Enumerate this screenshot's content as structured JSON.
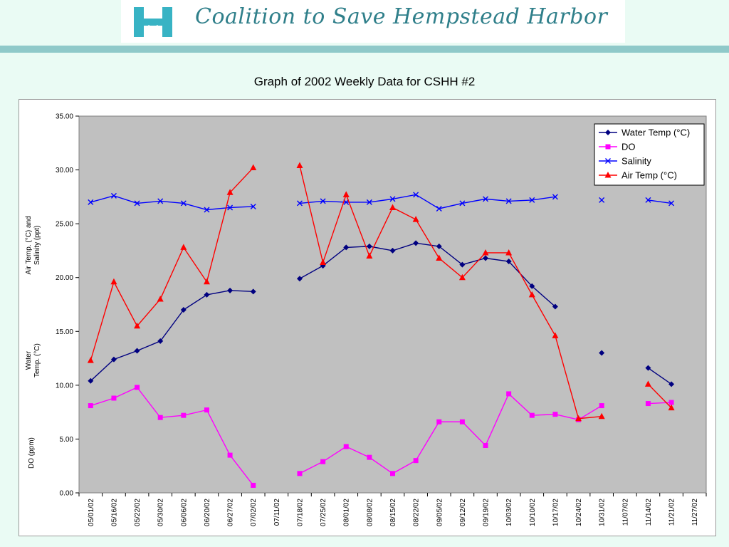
{
  "header": {
    "org_name": "Coalition to Save Hempstead Harbor",
    "logo_icon": "hempstead-harbor-h-logo-icon",
    "logo_color": "#38b3c4",
    "band_color": "#8fc9c9"
  },
  "chart_data": {
    "type": "line",
    "title": "Graph of 2002 Weekly Data for CSHH #2",
    "ylim": [
      0,
      35
    ],
    "yticks": [
      "0.00",
      "5.00",
      "10.00",
      "15.00",
      "20.00",
      "25.00",
      "30.00",
      "35.00"
    ],
    "ylabel_groups": [
      {
        "lines": [
          "Air Temp. (°C) and",
          "Salinity (ppt)"
        ]
      },
      {
        "lines": [
          "Water",
          "Temp. (°C)"
        ]
      },
      {
        "lines": [
          "DO (ppm)"
        ]
      }
    ],
    "categories": [
      "05/01/02",
      "05/16/02",
      "05/22/02",
      "05/30/02",
      "06/06/02",
      "06/20/02",
      "06/27/02",
      "07/02/02",
      "07/11/02",
      "07/18/02",
      "07/25/02",
      "08/01/02",
      "08/08/02",
      "08/15/02",
      "08/22/02",
      "09/05/02",
      "09/12/02",
      "09/19/02",
      "10/03/02",
      "10/10/02",
      "10/17/02",
      "10/24/02",
      "10/31/02",
      "11/07/02",
      "11/14/02",
      "11/21/02",
      "11/27/02"
    ],
    "grid": false,
    "plot_background": "#c0c0c0",
    "legend_position": "top-right",
    "series": [
      {
        "name": "Water Temp (°C)",
        "color": "#000080",
        "marker": "diamond",
        "values": [
          10.4,
          12.4,
          13.2,
          14.1,
          17.0,
          18.4,
          18.8,
          18.7,
          null,
          19.9,
          21.1,
          22.8,
          22.9,
          22.5,
          23.2,
          22.9,
          21.2,
          21.8,
          21.5,
          19.2,
          17.3,
          null,
          13.0,
          null,
          11.6,
          10.1,
          null
        ]
      },
      {
        "name": "DO",
        "color": "#ff00ff",
        "marker": "square",
        "values": [
          8.1,
          8.8,
          9.8,
          7.0,
          7.2,
          7.7,
          3.5,
          0.7,
          null,
          1.8,
          2.9,
          4.3,
          3.3,
          1.8,
          3.0,
          6.6,
          6.6,
          4.4,
          9.2,
          7.2,
          7.3,
          6.8,
          8.1,
          null,
          8.3,
          8.4,
          null
        ]
      },
      {
        "name": "Salinity",
        "color": "#0000ff",
        "marker": "x",
        "values": [
          27.0,
          27.6,
          26.9,
          27.1,
          26.9,
          26.3,
          26.5,
          26.6,
          null,
          26.9,
          27.1,
          27.0,
          27.0,
          27.3,
          27.7,
          26.4,
          26.9,
          27.3,
          27.1,
          27.2,
          27.5,
          null,
          27.2,
          null,
          27.2,
          26.9,
          null
        ]
      },
      {
        "name": "Air Temp (°C)",
        "color": "#ff0000",
        "marker": "triangle",
        "values": [
          12.3,
          19.6,
          15.5,
          18.0,
          22.8,
          19.6,
          27.9,
          30.2,
          null,
          30.4,
          21.4,
          27.7,
          22.0,
          26.5,
          25.4,
          21.8,
          20.0,
          22.3,
          22.3,
          18.4,
          14.6,
          6.9,
          7.1,
          null,
          10.1,
          7.9,
          null
        ]
      }
    ]
  }
}
